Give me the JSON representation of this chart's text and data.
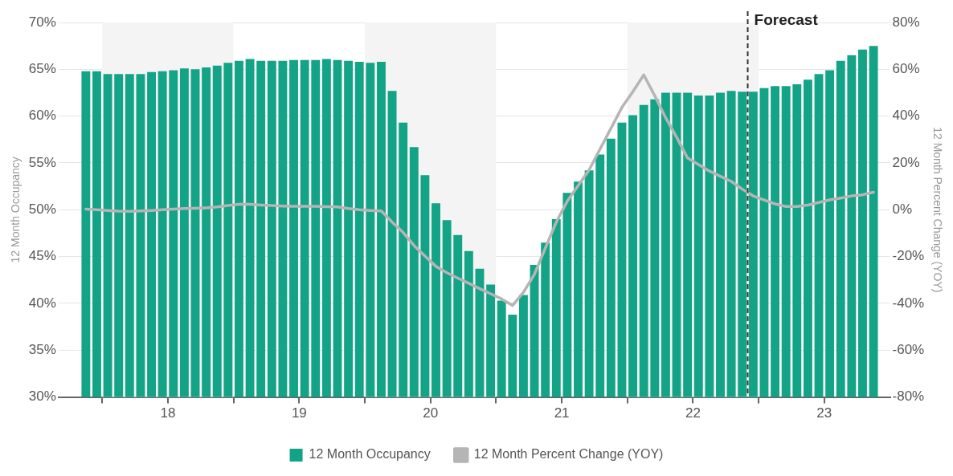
{
  "chart_data": {
    "type": "bar",
    "x": [
      "2017-11",
      "2017-12",
      "2018-01",
      "2018-02",
      "2018-03",
      "2018-04",
      "2018-05",
      "2018-06",
      "2018-07",
      "2018-08",
      "2018-09",
      "2018-10",
      "2018-11",
      "2018-12",
      "2019-01",
      "2019-02",
      "2019-03",
      "2019-04",
      "2019-05",
      "2019-06",
      "2019-07",
      "2019-08",
      "2019-09",
      "2019-10",
      "2019-11",
      "2019-12",
      "2020-01",
      "2020-02",
      "2020-03",
      "2020-04",
      "2020-05",
      "2020-06",
      "2020-07",
      "2020-08",
      "2020-09",
      "2020-10",
      "2020-11",
      "2020-12",
      "2021-01",
      "2021-02",
      "2021-03",
      "2021-04",
      "2021-05",
      "2021-06",
      "2021-07",
      "2021-08",
      "2021-09",
      "2021-10",
      "2021-11",
      "2021-12",
      "2022-01",
      "2022-02",
      "2022-03",
      "2022-04",
      "2022-05",
      "2022-06",
      "2022-07",
      "2022-08",
      "2022-09",
      "2022-10",
      "2022-11",
      "2022-12",
      "2023-01",
      "2023-02",
      "2023-03",
      "2023-04",
      "2023-05",
      "2023-06",
      "2023-07",
      "2023-08",
      "2023-09",
      "2023-10",
      "2023-11"
    ],
    "series": [
      {
        "name": "12 Month Occupancy",
        "color": "#13a386",
        "values": [
          64.8,
          64.8,
          64.5,
          64.5,
          64.5,
          64.5,
          64.7,
          64.8,
          64.9,
          65.1,
          65.0,
          65.2,
          65.4,
          65.7,
          65.9,
          66.1,
          65.9,
          65.9,
          65.9,
          66.0,
          66.0,
          66.0,
          66.1,
          66.0,
          65.9,
          65.8,
          65.7,
          65.8,
          62.7,
          59.3,
          56.7,
          53.7,
          50.7,
          48.9,
          47.3,
          45.6,
          43.7,
          42.0,
          40.3,
          38.8,
          40.9,
          44.1,
          46.5,
          49.0,
          51.8,
          53.0,
          54.2,
          55.9,
          57.6,
          59.3,
          60.1,
          61.2,
          61.8,
          62.5,
          62.5,
          62.5,
          62.2,
          62.2,
          62.5,
          62.7,
          62.6,
          62.6,
          63.0,
          63.2,
          63.2,
          63.4,
          63.9,
          64.5,
          64.9,
          65.9,
          66.5,
          67.1,
          67.5
        ]
      },
      {
        "name": "12 Month Percent Change (YOY)",
        "type": "line",
        "axis": "y2",
        "color": "#b5b5b5",
        "values": [
          0.3,
          0,
          -0.3,
          -0.6,
          -0.7,
          -0.5,
          -0.3,
          0,
          0.3,
          0.5,
          0.6,
          0.8,
          1.2,
          1.8,
          2.3,
          2.3,
          2,
          1.8,
          1.6,
          1.5,
          1.5,
          1.5,
          1.3,
          1.2,
          0.5,
          0,
          -0.3,
          -0.5,
          -5.3,
          -9.7,
          -15.3,
          -19.8,
          -24.2,
          -26.9,
          -29.2,
          -31.4,
          -33.7,
          -35.9,
          -38.1,
          -40.9,
          -35.3,
          -27.6,
          -16.4,
          -5.3,
          3.6,
          10.3,
          17,
          25.9,
          34.8,
          43.7,
          50.4,
          57.6,
          48.7,
          39.3,
          31,
          22.1,
          19.3,
          16.5,
          14.3,
          12.1,
          8.8,
          5.9,
          4.2,
          2.5,
          1.4,
          1.4,
          2,
          3.1,
          4.2,
          5,
          5.9,
          6.4,
          7.5
        ]
      }
    ],
    "ylabel": "12 Month Occupancy",
    "y2label": "12 Month Percent Change (YOY)",
    "xlim": [
      "2017-08-16",
      "2023-12-16"
    ],
    "xticks": [
      {
        "value": "2017-12-16",
        "label": null
      },
      {
        "value": "2018-06-16",
        "label": "18"
      },
      {
        "value": "2018-12-16",
        "label": null
      },
      {
        "value": "2019-06-16",
        "label": "19"
      },
      {
        "value": "2019-12-16",
        "label": null
      },
      {
        "value": "2020-06-16",
        "label": "20"
      },
      {
        "value": "2020-12-16",
        "label": null
      },
      {
        "value": "2021-06-16",
        "label": "21"
      },
      {
        "value": "2021-12-16",
        "label": null
      },
      {
        "value": "2022-06-16",
        "label": "22"
      },
      {
        "value": "2022-12-16",
        "label": null
      },
      {
        "value": "2023-06-16",
        "label": "23"
      }
    ],
    "ylim": [
      30,
      70
    ],
    "yticks": [
      {
        "value": 30,
        "label": "30%"
      },
      {
        "value": 35,
        "label": "35%"
      },
      {
        "value": 40,
        "label": "40%"
      },
      {
        "value": 45,
        "label": "45%"
      },
      {
        "value": 50,
        "label": "50%"
      },
      {
        "value": 55,
        "label": "55%"
      },
      {
        "value": 60,
        "label": "60%"
      },
      {
        "value": 65,
        "label": "65%"
      },
      {
        "value": 70,
        "label": "70%"
      }
    ],
    "y2lim": [
      -80,
      80
    ],
    "y2ticks": [
      {
        "value": -80,
        "label": "-80%"
      },
      {
        "value": -60,
        "label": "-60%"
      },
      {
        "value": -40,
        "label": "-40%"
      },
      {
        "value": -20,
        "label": "-20%"
      },
      {
        "value": 0,
        "label": "0%"
      },
      {
        "value": 20,
        "label": "20%"
      },
      {
        "value": 40,
        "label": "40%"
      },
      {
        "value": 60,
        "label": "60%"
      },
      {
        "value": 80,
        "label": "80%"
      }
    ],
    "bands": [
      {
        "axis": "x",
        "from": "2017-12-16",
        "to": "2018-12-16",
        "color": "#f4f4f4"
      },
      {
        "axis": "x",
        "from": "2019-12-16",
        "to": "2020-12-16",
        "color": "#f4f4f4"
      },
      {
        "axis": "x",
        "from": "2021-12-16",
        "to": "2022-12-16",
        "color": "#f4f4f4"
      }
    ],
    "ref_lines": [
      {
        "axis": "x",
        "value": "2022-11-16",
        "label": "Forecast",
        "color": "#333333",
        "line_style": "dashed"
      }
    ],
    "grid": "y",
    "legend": "bottom",
    "marker": "none",
    "line_style": "solid"
  }
}
